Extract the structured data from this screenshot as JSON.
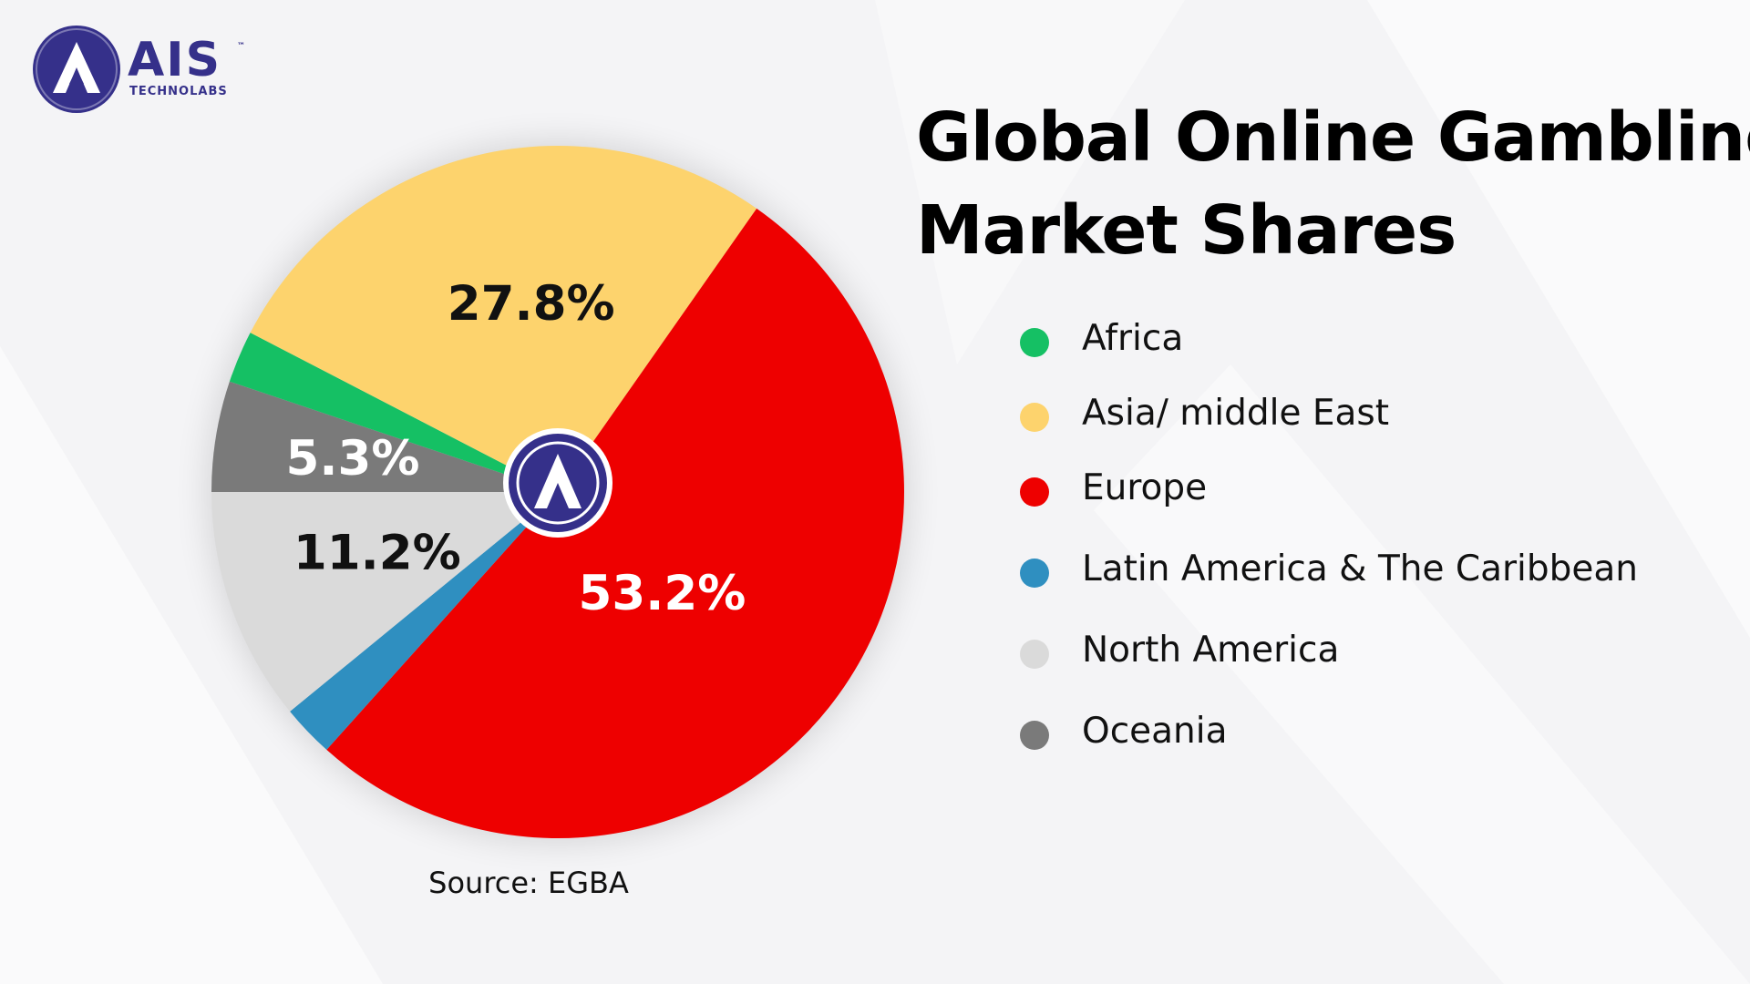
{
  "logo": {
    "text": "AIS",
    "tm": "™",
    "subtext": "TECHNOLABS",
    "letter": "A",
    "icon": "ais-logo-icon"
  },
  "title_lines": [
    "Global Online Gambling",
    "Market Shares"
  ],
  "source": "Source: EGBA",
  "colors": {
    "Africa": "#15c064",
    "Asia/ middle East": "#fdd36d",
    "Europe": "#ee0000",
    "Latin America & The Caribbean": "#2f8fc0",
    "North America": "#dadada",
    "Oceania": "#7a7a7a",
    "brand": "#35308a"
  },
  "chart_data": {
    "type": "pie",
    "title": "Global Online Gambling Market Shares",
    "legend_position": "right",
    "start_angle_deg": 180,
    "direction": "clockwise",
    "slices": [
      {
        "label": "Oceania",
        "value": 5.3,
        "display": "5.3%"
      },
      {
        "label": "Africa",
        "value": 2.5,
        "display": ""
      },
      {
        "label": "Asia/ middle East",
        "value": 27.8,
        "display": "27.8%"
      },
      {
        "label": "Europe",
        "value": 53.2,
        "display": "53.2%"
      },
      {
        "label": "Latin America & The Caribbean",
        "value": 2.5,
        "display": ""
      },
      {
        "label": "North America",
        "value": 11.2,
        "display": "11.2%"
      }
    ],
    "legend": [
      "Africa",
      "Asia/ middle East",
      "Europe",
      "Latin America & The Caribbean",
      "North America",
      "Oceania"
    ]
  }
}
